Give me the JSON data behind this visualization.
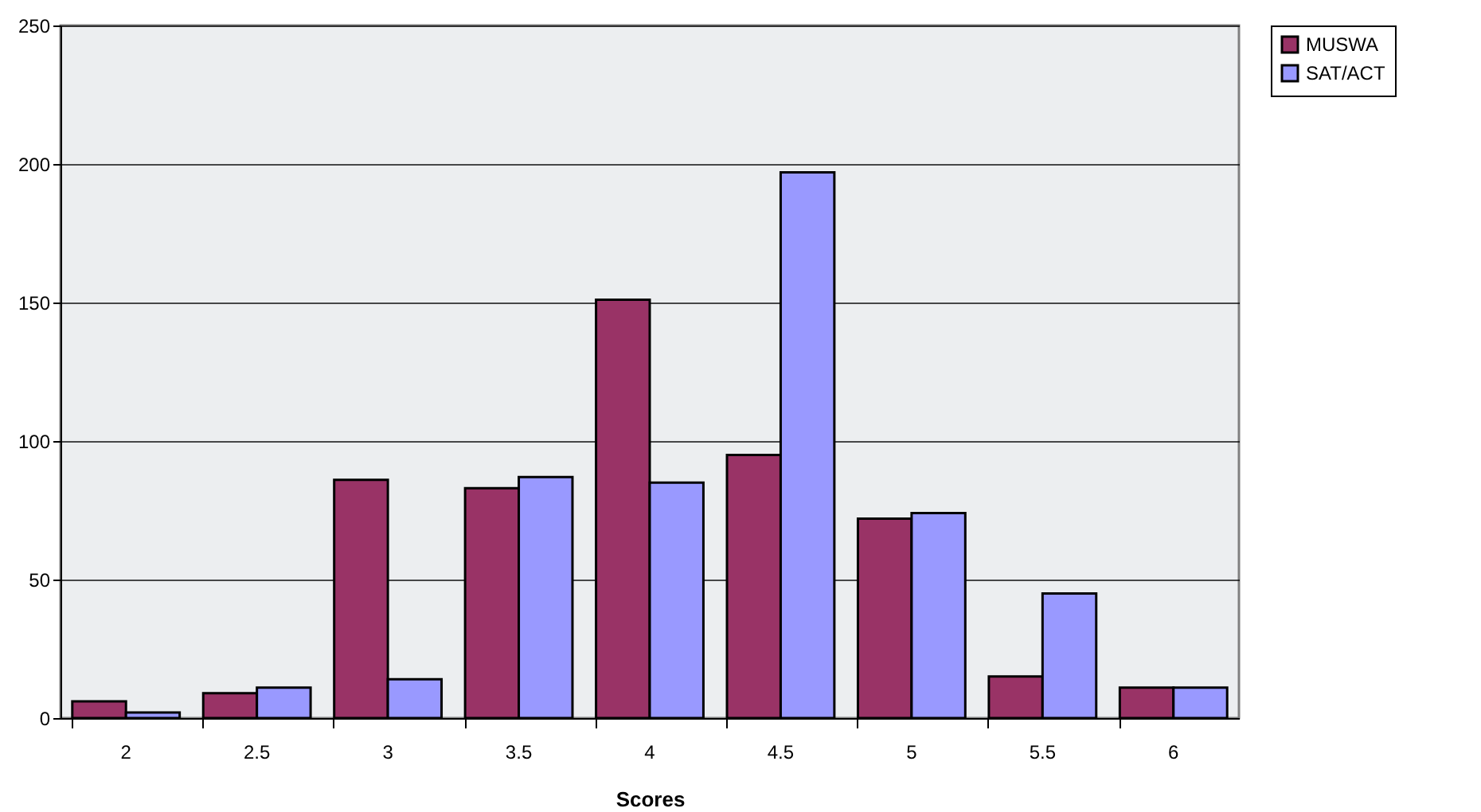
{
  "chart_data": {
    "type": "bar",
    "xlabel": "Scores",
    "categories": [
      "2",
      "2.5",
      "3",
      "3.5",
      "4",
      "4.5",
      "5",
      "5.5",
      "6"
    ],
    "series": [
      {
        "name": "MUSWA",
        "color": "#993366",
        "values": [
          6,
          9,
          86,
          83,
          151,
          95,
          72,
          15,
          11
        ]
      },
      {
        "name": "SAT/ACT",
        "color": "#9999ff",
        "values": [
          2,
          11,
          14,
          87,
          85,
          197,
          74,
          45,
          11
        ]
      }
    ],
    "ylim": [
      0,
      250
    ],
    "yticks": [
      0,
      50,
      100,
      150,
      200,
      250
    ],
    "grid": "y",
    "legend": "right"
  }
}
